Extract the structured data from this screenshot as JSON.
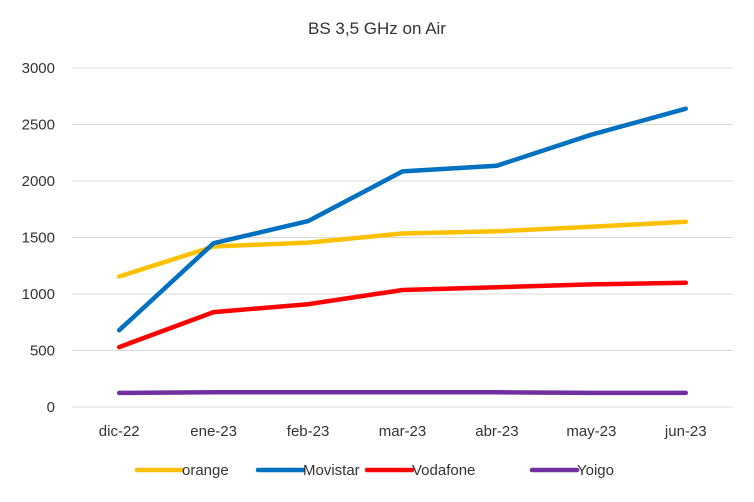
{
  "chart_data": {
    "type": "line",
    "title": "BS 3,5 GHz on Air",
    "categories": [
      "dic-22",
      "ene-23",
      "feb-23",
      "mar-23",
      "abr-23",
      "may-23",
      "jun-23"
    ],
    "yticks": [
      "0",
      "500",
      "1000",
      "1500",
      "2000",
      "2500",
      "3000"
    ],
    "ylim": [
      0,
      3000
    ],
    "grid": true,
    "legend_position": "bottom",
    "series": [
      {
        "name": "orange",
        "color": "#FFC000",
        "values": [
          1155,
          1420,
          1455,
          1535,
          1555,
          1595,
          1640
        ]
      },
      {
        "name": "Movistar",
        "color": "#0070C0",
        "values": [
          680,
          1450,
          1645,
          2085,
          2135,
          2410,
          2640
        ]
      },
      {
        "name": "Vodafone",
        "color": "#FF0000",
        "values": [
          530,
          840,
          910,
          1035,
          1060,
          1085,
          1100
        ]
      },
      {
        "name": "Yoigo",
        "color": "#7030A0",
        "values": [
          125,
          130,
          130,
          130,
          130,
          125,
          125
        ]
      }
    ]
  }
}
